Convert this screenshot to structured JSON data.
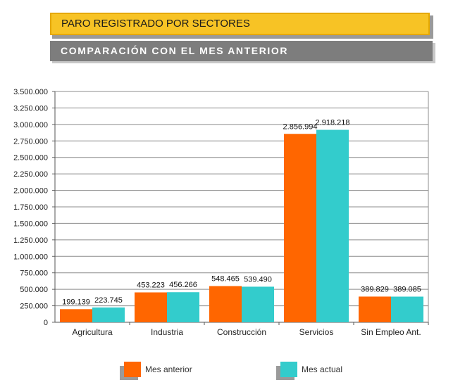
{
  "header": {
    "title": "PARO REGISTRADO POR SECTORES",
    "subtitle": "COMPARACIÓN CON EL MES ANTERIOR"
  },
  "colors": {
    "title_bg": "#f7c325",
    "subtitle_bg": "#7d7d7d",
    "series_1": "#ff6600",
    "series_2": "#33cccc"
  },
  "chart_data": {
    "type": "bar",
    "categories": [
      "Agricultura",
      "Industria",
      "Construcción",
      "Servicios",
      "Sin Empleo Ant."
    ],
    "series": [
      {
        "name": "Mes anterior",
        "values": [
          199139,
          453223,
          548465,
          2856994,
          389829
        ],
        "labels": [
          "199.139",
          "453.223",
          "548.465",
          "2.856.994",
          "389.829"
        ]
      },
      {
        "name": "Mes actual",
        "values": [
          223745,
          456266,
          539490,
          2918218,
          389085
        ],
        "labels": [
          "223.745",
          "456.266",
          "539.490",
          "2.918.218",
          "389.085"
        ]
      }
    ],
    "ylim": [
      0,
      3500000
    ],
    "yticks": [
      0,
      250000,
      500000,
      750000,
      1000000,
      1250000,
      1500000,
      1750000,
      2000000,
      2250000,
      2500000,
      2750000,
      3000000,
      3250000,
      3500000
    ],
    "ytick_labels": [
      "0",
      "250.000",
      "500.000",
      "750.000",
      "1.000.000",
      "1.250.000",
      "1.500.000",
      "1.750.000",
      "2.000.000",
      "2.250.000",
      "2.500.000",
      "2.750.000",
      "3.000.000",
      "3.250.000",
      "3.500.000"
    ],
    "grid": true,
    "legend": "bottom"
  }
}
